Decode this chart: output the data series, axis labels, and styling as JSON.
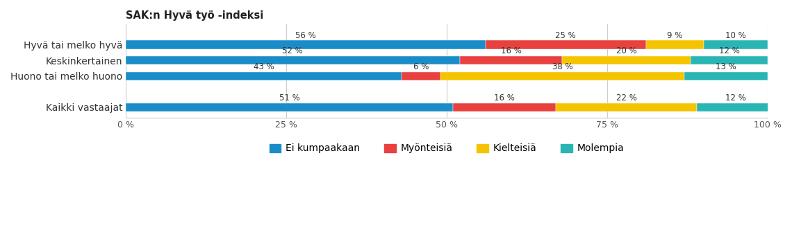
{
  "title": "SAK:n Hyvä työ -indeksi",
  "categories": [
    "Hyvä tai melko hyvä",
    "Keskinkertainen",
    "Huono tai melko huono",
    "",
    "Kaikki vastaajat"
  ],
  "segments": {
    "Ei kumpaakaan": [
      56,
      52,
      43,
      0,
      51
    ],
    "Myönteisiä": [
      25,
      16,
      6,
      0,
      16
    ],
    "Kielteisiä": [
      9,
      20,
      38,
      0,
      22
    ],
    "Molempia": [
      10,
      12,
      13,
      0,
      12
    ]
  },
  "colors": {
    "Ei kumpaakaan": "#1a8dc8",
    "Myönteisiä": "#e8413e",
    "Kielteisiä": "#f5c400",
    "Molempia": "#2ab5b5"
  },
  "labels": {
    "Ei kumpaakaan": [
      "56 %",
      "52 %",
      "43 %",
      "",
      "51 %"
    ],
    "Myönteisiä": [
      "25 %",
      "16 %",
      "6 %",
      "",
      "16 %"
    ],
    "Kielteisiä": [
      "9 %",
      "20 %",
      "38 %",
      "",
      "22 %"
    ],
    "Molempia": [
      "10 %",
      "12 %",
      "13 %",
      "",
      "12 %"
    ]
  },
  "xlim": [
    0,
    100
  ],
  "xticks": [
    0,
    25,
    50,
    75,
    100
  ],
  "xtick_labels": [
    "0 %",
    "25 %",
    "50 %",
    "75 %",
    "100 %"
  ],
  "legend_labels": [
    "Ei kumpaakaan",
    "Myönteisiä",
    "Kielteisiä",
    "Molempia"
  ],
  "bar_height": 0.55,
  "figsize": [
    11.4,
    3.48
  ],
  "dpi": 100
}
